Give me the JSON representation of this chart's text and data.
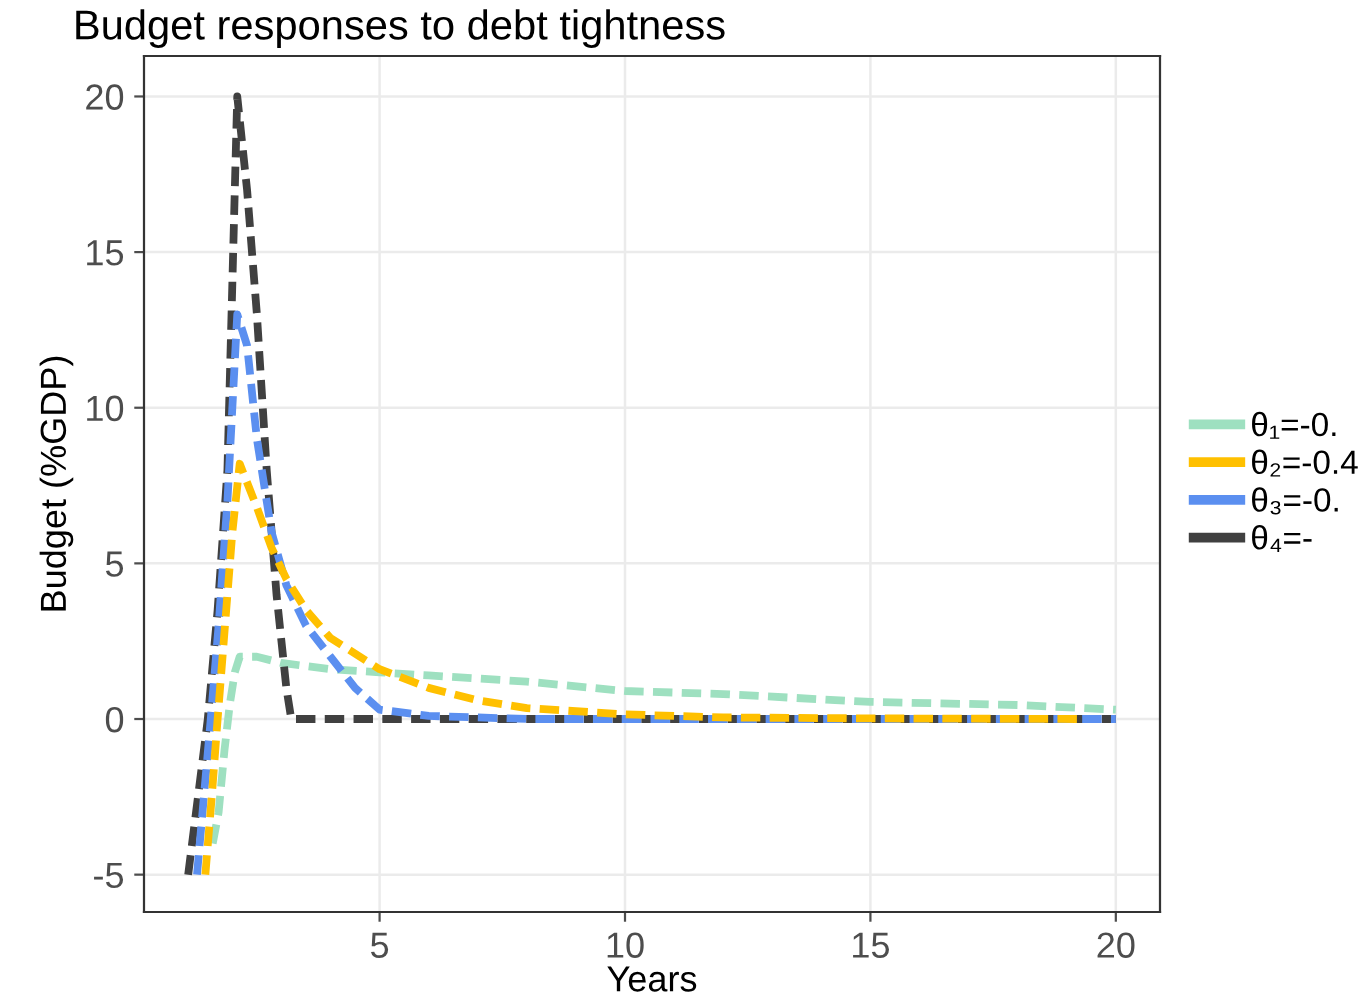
{
  "chart_data": {
    "type": "line",
    "title": "Budget responses to debt tightness",
    "xlabel": "Years",
    "ylabel": "Budget (%GDP)",
    "xlim": [
      0.2,
      20.9
    ],
    "xticks": [
      5,
      10,
      15,
      20
    ],
    "ylim": [
      -6.2,
      21.3
    ],
    "yticks": [
      -5,
      0,
      5,
      10,
      15,
      20
    ],
    "grid": true,
    "legend": "right",
    "line_style": "dashed",
    "marker": "none",
    "series": [
      {
        "name": "θ₁=-0.",
        "color": "#9ee0c0",
        "x": [
          1.6,
          1.72,
          1.84,
          1.95,
          2.05,
          2.15,
          2.5,
          3,
          3.5,
          4,
          5,
          6,
          8,
          10,
          12,
          15,
          18,
          20
        ],
        "values": [
          -4,
          -3,
          -1,
          0.5,
          1.5,
          2,
          2,
          1.8,
          1.7,
          1.6,
          1.5,
          1.4,
          1.2,
          0.9,
          0.8,
          0.55,
          0.45,
          0.3
        ]
      },
      {
        "name": "θ₂=-0.4",
        "color": "#ffc000",
        "x": [
          1.45,
          1.58,
          1.7,
          1.85,
          2.0,
          2.15,
          2.5,
          2.8,
          3.1,
          3.5,
          4,
          5,
          6,
          7,
          8,
          10,
          12,
          15,
          19.3
        ],
        "values": [
          -5,
          -2.5,
          0,
          3,
          6,
          8.2,
          6.8,
          5.5,
          4.5,
          3.5,
          2.6,
          1.6,
          1.0,
          0.6,
          0.35,
          0.15,
          0.05,
          0.02,
          0
        ]
      },
      {
        "name": "θ₃=-0.",
        "color": "#5b8ff0",
        "x": [
          1.28,
          1.42,
          1.56,
          1.72,
          1.9,
          2.1,
          2.3,
          2.5,
          2.8,
          3.1,
          3.5,
          4,
          4.5,
          5,
          6,
          8,
          20
        ],
        "values": [
          -5,
          -2.5,
          0,
          3,
          7,
          13,
          12,
          9,
          6,
          4.3,
          3,
          2,
          1,
          0.3,
          0.1,
          0,
          0
        ]
      },
      {
        "name": "θ₄=-",
        "color": "#404040",
        "x": [
          1.1,
          1.3,
          1.5,
          1.7,
          1.9,
          2.1,
          2.3,
          2.5,
          2.7,
          2.9,
          3.1,
          3.2,
          20
        ],
        "values": [
          -5,
          -2.5,
          0,
          3.5,
          8,
          20,
          17,
          13,
          8,
          4,
          1,
          0,
          0
        ]
      }
    ]
  }
}
